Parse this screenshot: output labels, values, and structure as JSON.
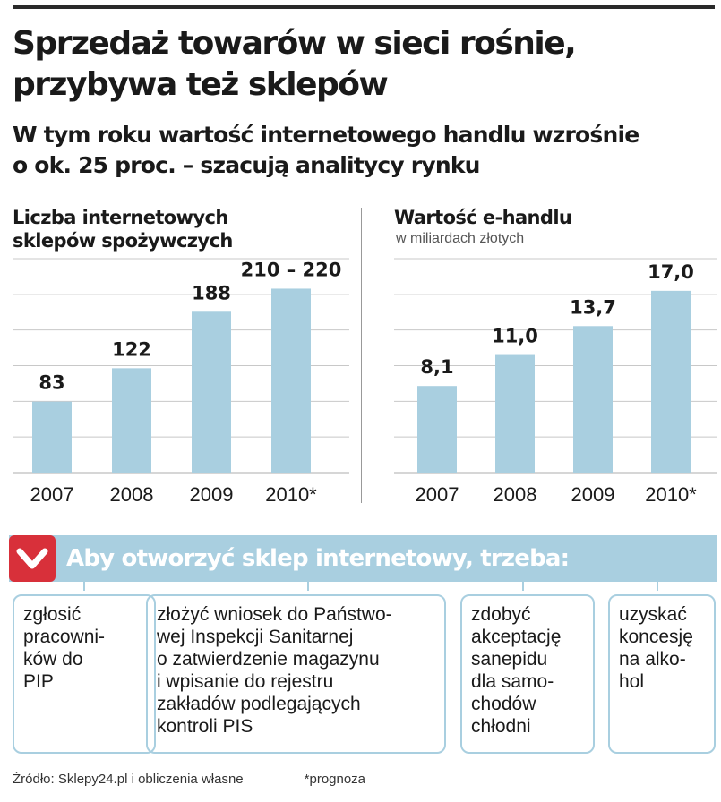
{
  "headline": [
    "Sprzedaż towarów w sieci rośnie,",
    "przybywa też sklepów"
  ],
  "deck": [
    "W tym roku wartość internetowego handlu wzrośnie",
    "o ok. 25 proc. – szacują analitycy rynku"
  ],
  "colors": {
    "bar": "#a9cfe0",
    "accent": "#d8303a",
    "gridline": "#c8c8c8",
    "text": "#1a1a1a"
  },
  "chart_data": [
    {
      "type": "bar",
      "title": "Liczba internetowych sklepów spożywczych",
      "title_lines": [
        "Liczba internetowych",
        "sklepów spożywczych"
      ],
      "subtitle": "",
      "xlabel": "",
      "ylabel": "",
      "categories": [
        "2007",
        "2008",
        "2009",
        "2010*"
      ],
      "values": [
        83,
        122,
        188,
        215
      ],
      "value_labels": [
        "83",
        "122",
        "188",
        "210 – 220"
      ],
      "ylim": [
        0,
        250
      ],
      "grid": true,
      "legend": "none"
    },
    {
      "type": "bar",
      "title": "Wartość e-handlu",
      "title_lines": [
        "Wartość e-handlu"
      ],
      "subtitle": "w miliardach złotych",
      "xlabel": "",
      "ylabel": "",
      "categories": [
        "2007",
        "2008",
        "2009",
        "2010*"
      ],
      "values": [
        8.1,
        11.0,
        13.7,
        17.0
      ],
      "value_labels": [
        "8,1",
        "11,0",
        "13,7",
        "17,0"
      ],
      "ylim": [
        0,
        20
      ],
      "grid": true,
      "legend": "none"
    }
  ],
  "requirements": {
    "title": "Aby otworzyć sklep internetowy, trzeba:",
    "icon": "chevron-down-icon",
    "steps": [
      "zgłosić\npracowni-\nków do\nPIP",
      "złożyć wniosek do Państwo-\nwej Inspekcji Sanitarnej\no zatwierdzenie magazynu\ni wpisanie do rejestru\nzakładów podlegających\nkontroli PIS",
      "zdobyć\nakceptację\nsanepidu\ndla samo-\nchodów\nchłodni",
      "uzyskać\nkoncesję\nna alko-\nhol"
    ]
  },
  "source": {
    "text": "Źródło: Sklepy24.pl i obliczenia własne",
    "note": "*prognoza"
  }
}
